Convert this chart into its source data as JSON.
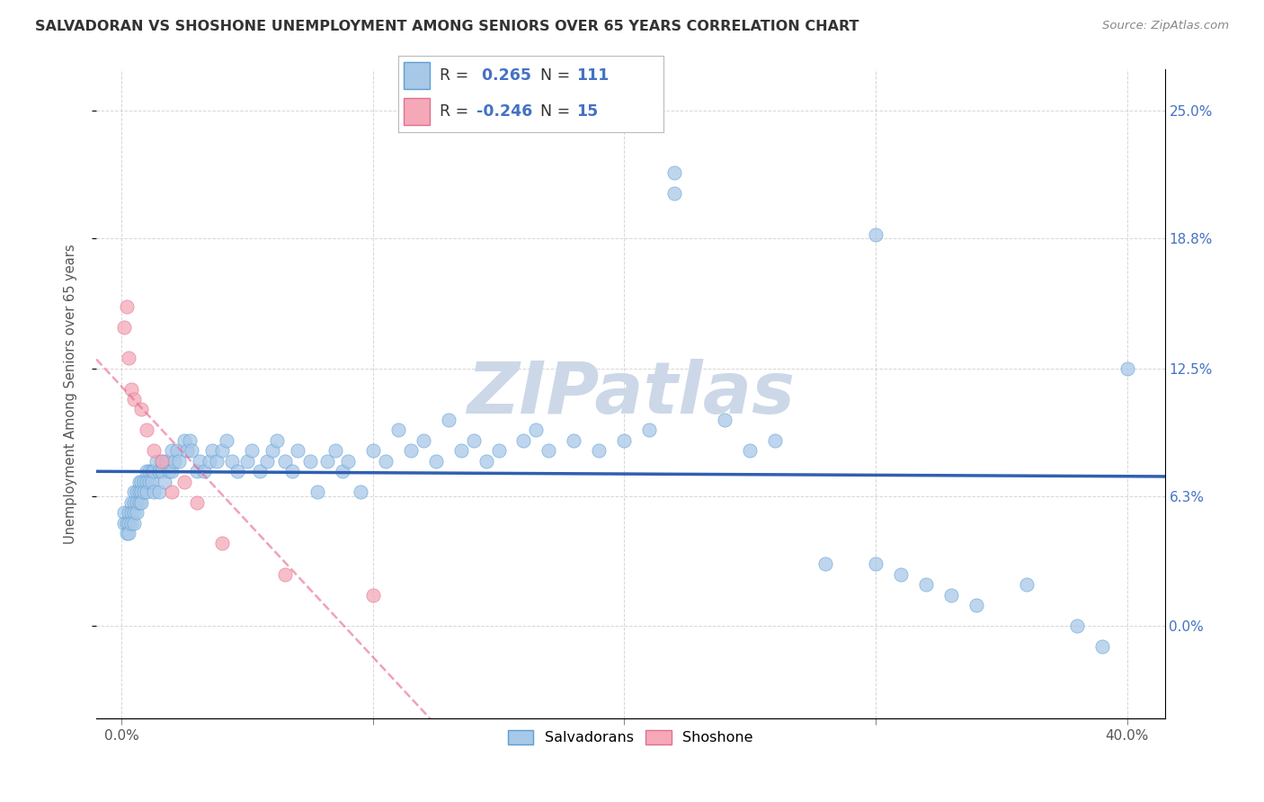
{
  "title": "SALVADORAN VS SHOSHONE UNEMPLOYMENT AMONG SENIORS OVER 65 YEARS CORRELATION CHART",
  "source": "Source: ZipAtlas.com",
  "ylabel": "Unemployment Among Seniors over 65 years",
  "right_ytick_vals": [
    0.0,
    0.063,
    0.125,
    0.188,
    0.25
  ],
  "right_ytick_labels": [
    "0.0%",
    "6.3%",
    "12.5%",
    "18.8%",
    "25.0%"
  ],
  "xtick_vals": [
    0.0,
    0.1,
    0.2,
    0.3,
    0.4
  ],
  "xtick_labels_ends": [
    "0.0%",
    "40.0%"
  ],
  "xlim": [
    -0.01,
    0.415
  ],
  "ylim": [
    -0.045,
    0.27
  ],
  "salvadoran_color": "#a8c8e8",
  "salvadoran_edge_color": "#5a9fd4",
  "shoshone_color": "#f4a8b8",
  "shoshone_edge_color": "#e07090",
  "trend_salvadoran_color": "#3060b0",
  "trend_shoshone_color": "#e87090",
  "r_salvadoran": 0.265,
  "n_salvadoran": 111,
  "r_shoshone": -0.246,
  "n_shoshone": 15,
  "legend_label_salvadoran": "Salvadorans",
  "legend_label_shoshone": "Shoshone",
  "watermark": "ZIPatlas",
  "watermark_color": "#ccd8e8",
  "background_color": "#ffffff",
  "grid_color": "#cccccc",
  "title_color": "#333333",
  "source_color": "#888888",
  "right_axis_color": "#4472c4",
  "salvadoran_x": [
    0.001,
    0.001,
    0.002,
    0.002,
    0.003,
    0.003,
    0.003,
    0.004,
    0.004,
    0.004,
    0.005,
    0.005,
    0.005,
    0.005,
    0.006,
    0.006,
    0.006,
    0.007,
    0.007,
    0.007,
    0.008,
    0.008,
    0.008,
    0.009,
    0.009,
    0.01,
    0.01,
    0.01,
    0.011,
    0.011,
    0.012,
    0.012,
    0.013,
    0.013,
    0.014,
    0.015,
    0.015,
    0.016,
    0.016,
    0.017,
    0.018,
    0.019,
    0.02,
    0.02,
    0.021,
    0.022,
    0.023,
    0.025,
    0.026,
    0.027,
    0.028,
    0.03,
    0.031,
    0.033,
    0.035,
    0.036,
    0.038,
    0.04,
    0.042,
    0.044,
    0.046,
    0.05,
    0.052,
    0.055,
    0.058,
    0.06,
    0.062,
    0.065,
    0.068,
    0.07,
    0.075,
    0.078,
    0.082,
    0.085,
    0.088,
    0.09,
    0.095,
    0.1,
    0.105,
    0.11,
    0.115,
    0.12,
    0.125,
    0.13,
    0.135,
    0.14,
    0.145,
    0.15,
    0.16,
    0.165,
    0.17,
    0.18,
    0.19,
    0.2,
    0.21,
    0.22,
    0.24,
    0.25,
    0.26,
    0.28,
    0.3,
    0.31,
    0.32,
    0.33,
    0.34,
    0.36,
    0.38,
    0.39,
    0.4,
    0.22,
    0.3
  ],
  "salvadoran_y": [
    0.055,
    0.05,
    0.05,
    0.045,
    0.055,
    0.05,
    0.045,
    0.06,
    0.055,
    0.05,
    0.065,
    0.06,
    0.055,
    0.05,
    0.065,
    0.06,
    0.055,
    0.07,
    0.065,
    0.06,
    0.07,
    0.065,
    0.06,
    0.07,
    0.065,
    0.075,
    0.07,
    0.065,
    0.075,
    0.07,
    0.075,
    0.07,
    0.075,
    0.065,
    0.08,
    0.075,
    0.065,
    0.08,
    0.075,
    0.07,
    0.08,
    0.075,
    0.085,
    0.075,
    0.08,
    0.085,
    0.08,
    0.09,
    0.085,
    0.09,
    0.085,
    0.075,
    0.08,
    0.075,
    0.08,
    0.085,
    0.08,
    0.085,
    0.09,
    0.08,
    0.075,
    0.08,
    0.085,
    0.075,
    0.08,
    0.085,
    0.09,
    0.08,
    0.075,
    0.085,
    0.08,
    0.065,
    0.08,
    0.085,
    0.075,
    0.08,
    0.065,
    0.085,
    0.08,
    0.095,
    0.085,
    0.09,
    0.08,
    0.1,
    0.085,
    0.09,
    0.08,
    0.085,
    0.09,
    0.095,
    0.085,
    0.09,
    0.085,
    0.09,
    0.095,
    0.21,
    0.1,
    0.085,
    0.09,
    0.03,
    0.03,
    0.025,
    0.02,
    0.015,
    0.01,
    0.02,
    0.0,
    -0.01,
    0.125,
    0.22,
    0.19
  ],
  "shoshone_x": [
    0.001,
    0.002,
    0.003,
    0.004,
    0.005,
    0.008,
    0.01,
    0.013,
    0.016,
    0.02,
    0.025,
    0.03,
    0.04,
    0.065,
    0.1
  ],
  "shoshone_y": [
    0.145,
    0.155,
    0.13,
    0.115,
    0.11,
    0.105,
    0.095,
    0.085,
    0.08,
    0.065,
    0.07,
    0.06,
    0.04,
    0.025,
    0.015
  ]
}
